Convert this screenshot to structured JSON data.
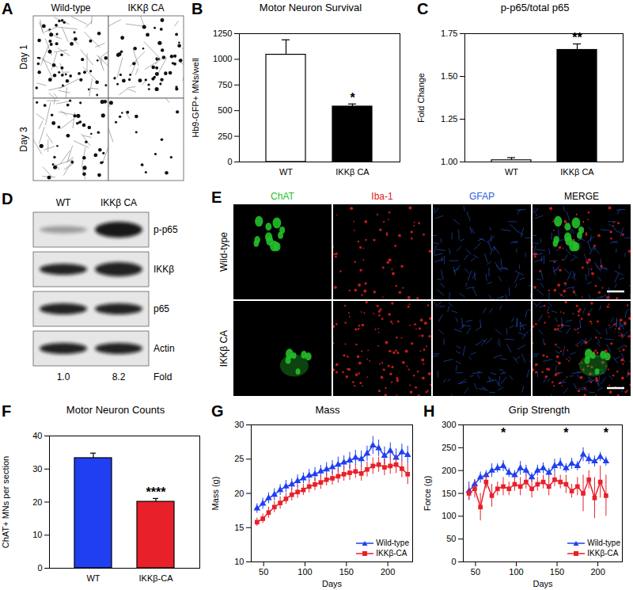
{
  "chart_data": [
    {
      "type": "bar",
      "title": "Motor Neuron Survival",
      "ylabel": "Hb9-GFP+ MNs/well",
      "categories": [
        "WT",
        "IKKβ CA"
      ],
      "values": [
        1045,
        540
      ],
      "errors": [
        145,
        25
      ],
      "colors": [
        "#ffffff",
        "#000000"
      ],
      "significance": [
        null,
        "*"
      ],
      "ylim": [
        0,
        1250
      ],
      "yticks": [
        0,
        250,
        500,
        750,
        1000,
        1250
      ]
    },
    {
      "type": "bar",
      "title": "p-p65/total p65",
      "ylabel": "Fold Change",
      "categories": [
        "WT",
        "IKKβ CA"
      ],
      "values": [
        1.01,
        1.655
      ],
      "errors": [
        0.015,
        0.035
      ],
      "colors": [
        "#ffffff",
        "#000000"
      ],
      "significance": [
        null,
        "**"
      ],
      "ylim": [
        1,
        1.75
      ],
      "yticks": [
        {
          "value": 1,
          "label": "1.00"
        },
        {
          "value": 1.25,
          "label": "1.25"
        },
        {
          "value": 1.5,
          "label": "1.50"
        },
        {
          "value": 1.75,
          "label": "1.75"
        }
      ]
    },
    {
      "type": "bar",
      "title": "Motor Neuron Counts",
      "ylabel": "ChAT+ MNs per section",
      "categories": [
        "WT",
        "IKKβ-CA"
      ],
      "values": [
        33.3,
        20.1
      ],
      "errors": [
        1.5,
        1.0
      ],
      "colors": [
        "#1f3ff0",
        "#e8202a"
      ],
      "significance": [
        null,
        "****"
      ],
      "ylim": [
        0,
        40
      ],
      "yticks": [
        0,
        10,
        20,
        30,
        40
      ]
    },
    {
      "type": "line",
      "title": "Mass",
      "xlabel": "Days",
      "ylabel": "Mass (g)",
      "x": [
        42,
        49,
        56,
        63,
        70,
        77,
        84,
        91,
        98,
        105,
        112,
        119,
        126,
        133,
        140,
        147,
        154,
        161,
        168,
        175,
        182,
        189,
        196,
        203,
        210,
        217,
        224
      ],
      "series": [
        {
          "name": "Wild-type",
          "color": "#1f3ff0",
          "marker": "triangle",
          "values": [
            17.8,
            18.5,
            19.3,
            19.8,
            20.5,
            21,
            21.3,
            21.8,
            22.2,
            22.6,
            22.8,
            23.2,
            23.5,
            23.8,
            24.2,
            24.5,
            24.8,
            25.2,
            25,
            25.8,
            27,
            26.6,
            25.5,
            26.2,
            25.2,
            26,
            25.6
          ],
          "errors": [
            0.7,
            0.8,
            0.8,
            0.9,
            0.8,
            0.9,
            0.8,
            0.9,
            0.8,
            0.9,
            1,
            0.9,
            1,
            1,
            1.1,
            1,
            1.2,
            1.1,
            1.2,
            1.1,
            1.3,
            1.2,
            1.3,
            1.2,
            1.3,
            1.2,
            1.3
          ]
        },
        {
          "name": "IKKβ-CA",
          "color": "#e8202a",
          "marker": "square",
          "values": [
            15.8,
            16.3,
            17.2,
            18,
            18.6,
            19.2,
            19.8,
            20.2,
            20.5,
            21,
            21.3,
            21.6,
            22,
            22.2,
            22.5,
            22.8,
            23,
            23.2,
            22.9,
            23.5,
            24,
            24.2,
            23.8,
            24,
            24.2,
            23.6,
            22.8
          ],
          "errors": [
            0.6,
            0.7,
            0.8,
            0.8,
            0.9,
            0.8,
            0.9,
            0.9,
            0.8,
            0.9,
            0.9,
            1,
            0.9,
            1,
            1,
            1,
            1.1,
            1,
            1.1,
            1.1,
            1.2,
            1.1,
            1.2,
            1.2,
            1.3,
            1.3,
            1.5
          ]
        }
      ],
      "xlim": [
        35,
        230
      ],
      "xticks": [
        50,
        100,
        150,
        200
      ],
      "ylim": [
        10,
        30
      ],
      "yticks": [
        10,
        15,
        20,
        25,
        30
      ],
      "legend": "lower right"
    },
    {
      "type": "line",
      "title": "Grip Strength",
      "xlabel": "Days",
      "ylabel": "Force (g)",
      "x": [
        42,
        49,
        56,
        63,
        70,
        77,
        84,
        91,
        98,
        105,
        112,
        119,
        126,
        133,
        140,
        147,
        154,
        161,
        168,
        175,
        182,
        189,
        196,
        203,
        210
      ],
      "series": [
        {
          "name": "Wild-type",
          "color": "#1f3ff0",
          "marker": "triangle",
          "values": [
            155,
            170,
            185,
            190,
            200,
            205,
            210,
            195,
            190,
            205,
            200,
            185,
            200,
            205,
            195,
            210,
            215,
            205,
            215,
            210,
            235,
            225,
            220,
            230,
            220
          ],
          "errors": [
            20,
            10,
            12,
            10,
            15,
            10,
            12,
            10,
            10,
            15,
            12,
            10,
            12,
            12,
            10,
            15,
            12,
            10,
            12,
            10,
            15,
            12,
            12,
            10,
            10
          ]
        },
        {
          "name": "IKKβ-CA",
          "color": "#e8202a",
          "marker": "square",
          "values": [
            150,
            160,
            120,
            175,
            145,
            160,
            165,
            160,
            170,
            165,
            175,
            160,
            170,
            175,
            165,
            180,
            175,
            170,
            155,
            165,
            150,
            180,
            140,
            175,
            145
          ],
          "errors": [
            15,
            20,
            30,
            15,
            25,
            15,
            20,
            15,
            15,
            20,
            15,
            20,
            15,
            15,
            20,
            15,
            15,
            20,
            15,
            20,
            40,
            20,
            45,
            35,
            45
          ]
        }
      ],
      "annotations": [
        {
          "x": 84,
          "text": "*"
        },
        {
          "x": 161,
          "text": "*"
        },
        {
          "x": 210,
          "text": "*"
        }
      ],
      "xlim": [
        35,
        230
      ],
      "xticks": [
        50,
        100,
        150,
        200
      ],
      "ylim": [
        0,
        300
      ],
      "yticks": [
        0,
        50,
        100,
        150,
        200,
        250,
        300
      ],
      "legend": "lower right"
    }
  ],
  "figure": {
    "panel_labels": [
      "A",
      "B",
      "C",
      "D",
      "E",
      "F",
      "G",
      "H"
    ],
    "A": {
      "columns": [
        "Wild-type",
        "IKKβ CA"
      ],
      "rows": [
        "Day 1",
        "Day 3"
      ]
    },
    "D": {
      "lanes": [
        "WT",
        "IKKβ CA"
      ],
      "bands": [
        "p-p65",
        "IKKβ",
        "p65",
        "Actin"
      ],
      "fold_label": "Fold",
      "fold": [
        {
          "value": 1,
          "label": "1.0"
        },
        {
          "value": 8.2,
          "label": "8.2"
        }
      ]
    },
    "E": {
      "stains": [
        {
          "name": "ChAT",
          "color": "#22c02a"
        },
        {
          "name": "Iba-1",
          "color": "#e02020"
        },
        {
          "name": "GFAP",
          "color": "#2a5ee0"
        },
        {
          "name": "MERGE",
          "color": "#000000"
        }
      ],
      "rows": [
        "Wild-type",
        "IKKβ CA"
      ]
    }
  }
}
